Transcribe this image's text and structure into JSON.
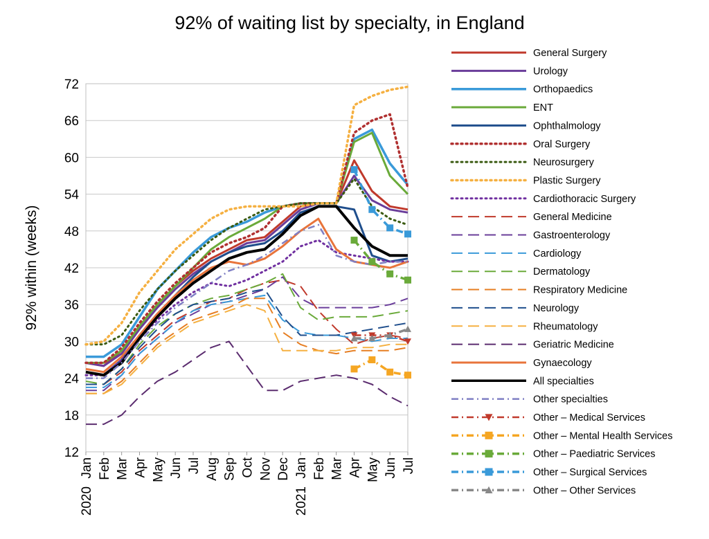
{
  "chart_data": {
    "type": "line",
    "title": "92% of waiting list by specialty, in England",
    "ylabel": "92% within (weeks)",
    "xlabel": "",
    "ylim": [
      12,
      72
    ],
    "yticks": [
      12,
      18,
      24,
      30,
      36,
      42,
      48,
      54,
      60,
      66,
      72
    ],
    "grid": "horizontal",
    "legend_position": "right",
    "categories": [
      "Jan 2020",
      "Feb",
      "Mar",
      "Apr",
      "May",
      "Jun",
      "Jul",
      "Aug",
      "Sep",
      "Oct",
      "Nov",
      "Dec",
      "Jan 2021",
      "Feb",
      "Mar",
      "Apr",
      "May",
      "Jun",
      "Jul"
    ],
    "x_tick_labels": [
      {
        "month": "Jan",
        "year": "2020"
      },
      {
        "month": "Feb",
        "year": ""
      },
      {
        "month": "Mar",
        "year": ""
      },
      {
        "month": "Apr",
        "year": ""
      },
      {
        "month": "May",
        "year": ""
      },
      {
        "month": "Jun",
        "year": ""
      },
      {
        "month": "Jul",
        "year": ""
      },
      {
        "month": "Aug",
        "year": ""
      },
      {
        "month": "Sep",
        "year": ""
      },
      {
        "month": "Oct",
        "year": ""
      },
      {
        "month": "Nov",
        "year": ""
      },
      {
        "month": "Dec",
        "year": ""
      },
      {
        "month": "Jan",
        "year": "2021"
      },
      {
        "month": "Feb",
        "year": ""
      },
      {
        "month": "Mar",
        "year": ""
      },
      {
        "month": "Apr",
        "year": ""
      },
      {
        "month": "May",
        "year": ""
      },
      {
        "month": "Jun",
        "year": ""
      },
      {
        "month": "Jul",
        "year": ""
      }
    ],
    "series": [
      {
        "name": "General  Surgery",
        "color": "#c0392b",
        "dash": "solid",
        "width": 3,
        "values": [
          26.5,
          26,
          28.5,
          32.5,
          36,
          39,
          41.5,
          43.5,
          45,
          46.5,
          47,
          49.5,
          52,
          52.5,
          52.5,
          59.5,
          54.5,
          52,
          51.5
        ]
      },
      {
        "name": "Urology",
        "color": "#6a3d9a",
        "dash": "solid",
        "width": 3,
        "values": [
          26.5,
          26,
          28,
          32,
          35.5,
          38.5,
          41,
          43,
          44.5,
          46,
          46.5,
          49,
          51.5,
          52.5,
          52.5,
          57,
          53,
          51.5,
          51
        ]
      },
      {
        "name": "Orthopaedics",
        "color": "#3a9ad9",
        "dash": "solid",
        "width": 3.5,
        "values": [
          27.5,
          27.5,
          29.5,
          34,
          38.5,
          41.5,
          44.5,
          47,
          48.5,
          49.5,
          51,
          52,
          52.5,
          52.5,
          52.5,
          63,
          64.5,
          59,
          55.5
        ]
      },
      {
        "name": "ENT",
        "color": "#6aaa3a",
        "dash": "solid",
        "width": 3,
        "values": [
          26.5,
          26.5,
          28.5,
          32.5,
          36,
          39,
          42,
          45,
          47,
          48.5,
          50,
          52,
          52.5,
          52.5,
          52.5,
          62.5,
          64,
          57,
          54
        ]
      },
      {
        "name": "Ophthalmology",
        "color": "#1f4e8c",
        "dash": "solid",
        "width": 3,
        "values": [
          25,
          24.5,
          27,
          31,
          34.5,
          37.5,
          40.5,
          43,
          44.5,
          45.5,
          46,
          48,
          51,
          52,
          52,
          51.5,
          44,
          43,
          43.5
        ]
      },
      {
        "name": "Oral  Surgery",
        "color": "#b03030",
        "dash": "dot",
        "width": 3.5,
        "values": [
          26.5,
          26.5,
          29,
          33,
          36.5,
          39.5,
          42,
          44.5,
          46,
          47,
          48.5,
          52,
          52.5,
          52.5,
          52.5,
          64,
          66,
          67,
          55
        ]
      },
      {
        "name": "Neurosurgery",
        "color": "#3a5a10",
        "dash": "dot",
        "width": 3,
        "values": [
          29.5,
          29.5,
          31,
          35,
          38.5,
          41.5,
          44,
          46.5,
          48.5,
          50,
          51.5,
          52,
          52.5,
          52.5,
          52.5,
          56.5,
          52,
          50,
          49
        ]
      },
      {
        "name": "Plastic  Surgery",
        "color": "#f5b041",
        "dash": "dot",
        "width": 3.5,
        "values": [
          29.5,
          30,
          33,
          38,
          41.5,
          45,
          47.5,
          50,
          51.5,
          52,
          52,
          52,
          52,
          52.5,
          52.5,
          68.5,
          70,
          71,
          71.5
        ]
      },
      {
        "name": "Cardiothoracic  Surgery",
        "color": "#7030a0",
        "dash": "dot",
        "width": 3,
        "values": [
          24.5,
          24.5,
          27,
          30.5,
          33.5,
          36,
          38,
          39.5,
          39,
          40,
          41.5,
          43,
          45.5,
          46.5,
          44.5,
          44,
          43.5,
          43,
          43
        ]
      },
      {
        "name": "General  Medicine",
        "color": "#c0392b",
        "dash": "longdash",
        "width": 2,
        "values": [
          23,
          23,
          25,
          28.5,
          31,
          33.5,
          35,
          36.5,
          37,
          38.5,
          39.5,
          40,
          39,
          35,
          32,
          29.5,
          30.5,
          31,
          30.5
        ]
      },
      {
        "name": "Gastroenterology",
        "color": "#6a3d9a",
        "dash": "longdash",
        "width": 2,
        "values": [
          22,
          22,
          24.5,
          28,
          30.5,
          33,
          34.5,
          36,
          36.5,
          37.5,
          38.5,
          40.5,
          37,
          35.5,
          35.5,
          35.5,
          35.5,
          36,
          37
        ]
      },
      {
        "name": "Cardiology",
        "color": "#3a9ad9",
        "dash": "longdash",
        "width": 2,
        "values": [
          22.5,
          22.5,
          24.5,
          28,
          30.5,
          33,
          35,
          36,
          36.5,
          37,
          37.5,
          33.5,
          31.5,
          31,
          31,
          30.5,
          30,
          30.5,
          30.5
        ]
      },
      {
        "name": "Dermatology",
        "color": "#6aaa3a",
        "dash": "longdash",
        "width": 2,
        "values": [
          23.5,
          23,
          25.5,
          29.5,
          32.5,
          34.5,
          36,
          37,
          37.5,
          38.5,
          39.5,
          41,
          35.5,
          33.5,
          34,
          34,
          34,
          34.5,
          35
        ]
      },
      {
        "name": "Respiratory  Medicine",
        "color": "#e67e22",
        "dash": "longdash",
        "width": 2,
        "values": [
          21.5,
          21.5,
          23.5,
          26.5,
          29.5,
          31.5,
          33.5,
          34.5,
          35.5,
          37,
          37,
          31.5,
          29.5,
          28.5,
          28,
          28.5,
          28.5,
          28.5,
          29
        ]
      },
      {
        "name": "Neurology",
        "color": "#1f4e8c",
        "dash": "longdash",
        "width": 2,
        "values": [
          23,
          23,
          25.5,
          29,
          32,
          34.5,
          36,
          36.5,
          37,
          38,
          38.5,
          34,
          31,
          31,
          31,
          31.5,
          32,
          32.5,
          33
        ]
      },
      {
        "name": "Rheumatology",
        "color": "#f5b041",
        "dash": "longdash",
        "width": 2,
        "values": [
          21.5,
          21.5,
          23,
          26,
          29,
          31,
          33,
          34,
          35,
          36,
          35,
          28.5,
          28.5,
          28.5,
          28.5,
          29,
          29,
          29.5,
          29.5
        ]
      },
      {
        "name": "Geriatric  Medicine",
        "color": "#5b2c6f",
        "dash": "longdash",
        "width": 2,
        "values": [
          16.5,
          16.5,
          18,
          21,
          23.5,
          25,
          27,
          29,
          30,
          26,
          22,
          22,
          23.5,
          24,
          24.5,
          24,
          23,
          21,
          19.5
        ]
      },
      {
        "name": "Gynaecology",
        "color": "#e8743b",
        "dash": "solid",
        "width": 3,
        "values": [
          25.5,
          25,
          27.5,
          31,
          34.5,
          37.5,
          40,
          42,
          43,
          42.5,
          43.5,
          45.5,
          48,
          50,
          45,
          43,
          42.5,
          42,
          43
        ]
      },
      {
        "name": "All  specialties",
        "color": "#000000",
        "dash": "solid",
        "width": 4,
        "values": [
          25,
          24.5,
          26.5,
          30.5,
          34,
          37,
          39.5,
          41.5,
          43.5,
          44.5,
          45,
          47.5,
          50.5,
          52,
          52,
          48.5,
          45.5,
          44,
          44
        ]
      },
      {
        "name": "Other  specialties",
        "color": "#7f7fc4",
        "dash": "dashdot",
        "width": 2.5,
        "values": [
          24,
          24,
          26.5,
          30,
          33,
          35.5,
          37.5,
          39.5,
          41.5,
          42.5,
          44,
          46,
          48,
          49,
          44,
          43,
          42.5,
          43,
          43
        ]
      },
      {
        "name": "Other – Medical Services",
        "color": "#c0392b",
        "dash": "dashdot",
        "width": 2.5,
        "marker": "triangle-down",
        "values": [
          null,
          null,
          null,
          null,
          null,
          null,
          null,
          null,
          null,
          null,
          null,
          null,
          null,
          null,
          null,
          31,
          31,
          31,
          30
        ]
      },
      {
        "name": "Other – Mental Health Services",
        "color": "#f5a623",
        "dash": "dashdot",
        "width": 3.5,
        "marker": "square",
        "values": [
          null,
          null,
          null,
          null,
          null,
          null,
          null,
          null,
          null,
          null,
          null,
          null,
          null,
          null,
          null,
          25.5,
          27,
          25,
          24.5
        ]
      },
      {
        "name": "Other – Paediatric Services",
        "color": "#6aaa3a",
        "dash": "dashdot",
        "width": 3.5,
        "marker": "square",
        "values": [
          null,
          null,
          null,
          null,
          null,
          null,
          null,
          null,
          null,
          null,
          null,
          null,
          null,
          null,
          null,
          46.5,
          43,
          41,
          40
        ]
      },
      {
        "name": "Other – Surgical Services",
        "color": "#3a9ad9",
        "dash": "dashdot",
        "width": 3.5,
        "marker": "square",
        "values": [
          null,
          null,
          null,
          null,
          null,
          null,
          null,
          null,
          null,
          null,
          null,
          null,
          null,
          null,
          null,
          58,
          51.5,
          48.5,
          47.5
        ]
      },
      {
        "name": "Other – Other Services",
        "color": "#888888",
        "dash": "dashdot",
        "width": 3.5,
        "marker": "triangle-up",
        "values": [
          null,
          null,
          null,
          null,
          null,
          null,
          null,
          null,
          null,
          null,
          null,
          null,
          null,
          null,
          null,
          30.5,
          30.5,
          31,
          32
        ]
      }
    ]
  }
}
